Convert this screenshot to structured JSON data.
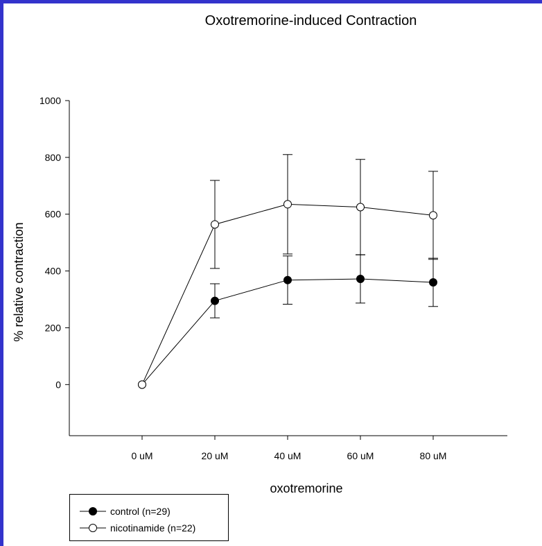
{
  "colors": {
    "background_border": "#3333cc",
    "panel": "#ffffff",
    "ink": "#000000"
  },
  "chart_data": {
    "type": "line",
    "title": "Oxotremorine-induced Contraction",
    "xlabel": "oxotremorine",
    "ylabel": "% relative contraction",
    "categories": [
      "0 uM",
      "20 uM",
      "40 uM",
      "60 uM",
      "80 uM"
    ],
    "ylim": [
      -180,
      1000
    ],
    "yticks": [
      0,
      200,
      400,
      600,
      800,
      1000
    ],
    "grid": false,
    "legend_position": "bottom-left",
    "series": [
      {
        "name": "control (n=29)",
        "marker": "filled-circle",
        "values": [
          0,
          295,
          368,
          372,
          360
        ],
        "error": [
          null,
          60,
          85,
          85,
          85
        ]
      },
      {
        "name": "nicotinamide (n=22)",
        "marker": "open-circle",
        "values": [
          0,
          564,
          635,
          625,
          596
        ],
        "error": [
          null,
          155,
          175,
          168,
          155
        ]
      }
    ]
  }
}
